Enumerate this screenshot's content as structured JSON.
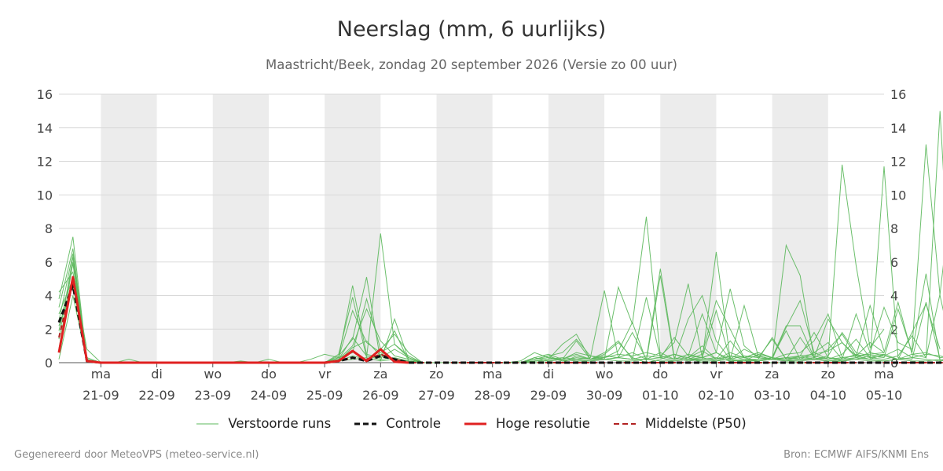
{
  "title": "Neerslag (mm, 6 uurlijks)",
  "subtitle": "Maastricht/Beek, zondag 20 september 2026 (Versie zo 00 uur)",
  "footer": {
    "left": "Gegenereerd door MeteoVPS (meteo-service.nl)",
    "right": "Bron: ECMWF AIFS/KNMI Ens"
  },
  "legend": [
    {
      "label": "Verstoorde runs",
      "color": "#5cb85c",
      "style": "thin"
    },
    {
      "label": "Controle",
      "color": "#111111",
      "style": "dashed"
    },
    {
      "label": "Hoge resolutie",
      "color": "#e02020",
      "style": "solid"
    },
    {
      "label": "Middelste (P50)",
      "color": "#b22222",
      "style": "dashed"
    }
  ],
  "chart_data": {
    "type": "line",
    "ylim": [
      0,
      16
    ],
    "yticks": [
      0,
      2,
      4,
      6,
      8,
      10,
      12,
      14,
      16
    ],
    "x_range_days": [
      -0.75,
      14.0
    ],
    "x_tick_labels": [
      {
        "day": "ma",
        "date": "21-09"
      },
      {
        "day": "di",
        "date": "22-09"
      },
      {
        "day": "wo",
        "date": "23-09"
      },
      {
        "day": "do",
        "date": "24-09"
      },
      {
        "day": "vr",
        "date": "25-09"
      },
      {
        "day": "za",
        "date": "26-09"
      },
      {
        "day": "zo",
        "date": "27-09"
      },
      {
        "day": "ma",
        "date": "28-09"
      },
      {
        "day": "di",
        "date": "29-09"
      },
      {
        "day": "wo",
        "date": "30-09"
      },
      {
        "day": "do",
        "date": "01-10"
      },
      {
        "day": "vr",
        "date": "02-10"
      },
      {
        "day": "za",
        "date": "03-10"
      },
      {
        "day": "zo",
        "date": "04-10"
      },
      {
        "day": "ma",
        "date": "05-10"
      }
    ],
    "shaded_days": [
      0,
      2,
      4,
      6,
      8,
      10,
      12
    ],
    "grid": true,
    "legend_position": "bottom",
    "perturbed_runs": [
      [
        4.2,
        5.4,
        0.8,
        0,
        0,
        0,
        0,
        0,
        0,
        0,
        0,
        0,
        0,
        0,
        0,
        0,
        0,
        0,
        0,
        0,
        0.3,
        4.6,
        0.5,
        0.3,
        0.8,
        0.3,
        0,
        0,
        0,
        0,
        0,
        0,
        0,
        0,
        0,
        0,
        0,
        0.4,
        0.2,
        0.5,
        1.2,
        0.3,
        0,
        0.2,
        0.5,
        0.3,
        0,
        0,
        0,
        0,
        0,
        0,
        0,
        0,
        0,
        0,
        0.1,
        0.2,
        0.4,
        0.5,
        0.2,
        1.8,
        3.5,
        0.8
      ],
      [
        3.8,
        7.5,
        0.1,
        0,
        0,
        0.2,
        0,
        0,
        0,
        0,
        0,
        0,
        0,
        0.1,
        0,
        0.2,
        0,
        0,
        0.2,
        0.5,
        0.3,
        3.1,
        1.2,
        0.6,
        1.1,
        0.3,
        0,
        0,
        0,
        0,
        0,
        0,
        0,
        0.1,
        0.6,
        0.3,
        0.1,
        0.2,
        0.3,
        4.3,
        0.3,
        0.6,
        0.2,
        5.6,
        0.3,
        0.1,
        0.2,
        6.6,
        0.2,
        0.1,
        0.5,
        0.3,
        0.1,
        0.4,
        1.8,
        0.3,
        0.1,
        0.3,
        0.2,
        11.7,
        0.3,
        0.2,
        3.6,
        0.2
      ],
      [
        2.5,
        6.5,
        0.1,
        0,
        0,
        0,
        0,
        0,
        0,
        0,
        0,
        0,
        0,
        0,
        0,
        0,
        0,
        0,
        0,
        0,
        0.5,
        3.9,
        0.3,
        7.7,
        1.1,
        0.4,
        0,
        0,
        0,
        0,
        0,
        0,
        0,
        0,
        0.3,
        0.5,
        0.2,
        1.3,
        0.2,
        0.2,
        4.5,
        2.3,
        8.7,
        0.4,
        1.2,
        4.7,
        0.3,
        3.1,
        0.2,
        3.4,
        0.4,
        0.2,
        2.1,
        3.7,
        0.6,
        1.2,
        0.2,
        2.9,
        0.6,
        3.3,
        1.2,
        0.8,
        13.0,
        4.0,
        0.2
      ],
      [
        2.9,
        5.0,
        0.3,
        0,
        0,
        0,
        0,
        0,
        0,
        0,
        0,
        0,
        0,
        0,
        0,
        0,
        0,
        0,
        0,
        0,
        0.4,
        1.4,
        5.1,
        0.1,
        2.6,
        0.2,
        0,
        0,
        0,
        0,
        0,
        0,
        0,
        0,
        0.2,
        0.4,
        0.6,
        1.4,
        0.4,
        0.3,
        0.7,
        2.4,
        0.1,
        5.2,
        0.2,
        2.6,
        4.0,
        1.3,
        0.2,
        0.8,
        0.4,
        0.2,
        0.5,
        0.6,
        1.3,
        2.9,
        0.3,
        0.4,
        0.5,
        0.6,
        3.6,
        0.5,
        0.3,
        15.0,
        0.2,
        1.2
      ],
      [
        3.3,
        6.8,
        0.2,
        0,
        0,
        0,
        0,
        0,
        0,
        0,
        0,
        0,
        0,
        0,
        0,
        0,
        0,
        0,
        0,
        0,
        0.2,
        1.0,
        3.2,
        1.3,
        0.4,
        0.2,
        0,
        0,
        0,
        0,
        0,
        0,
        0,
        0,
        0.1,
        0.2,
        1.1,
        1.7,
        0.2,
        0.6,
        1.3,
        0.2,
        3.9,
        0.3,
        1.5,
        0.4,
        2.9,
        0.6,
        0.1,
        0.2,
        0.1,
        0.3,
        1.9,
        0.2,
        0.2,
        0.4,
        1.8,
        0.6,
        0.4,
        0.3,
        3.2,
        0.6,
        5.3,
        0.1,
        0.3
      ],
      [
        2.2,
        4.6,
        0.2,
        0,
        0,
        0,
        0,
        0,
        0,
        0,
        0,
        0,
        0,
        0,
        0,
        0,
        0,
        0,
        0,
        0,
        0.3,
        0.6,
        3.8,
        0.8,
        1.7,
        0.6,
        0,
        0,
        0,
        0,
        0,
        0,
        0,
        0,
        0.2,
        0.4,
        0.1,
        0.3,
        0.2,
        0.4,
        0.3,
        1.8,
        0.2,
        0.6,
        0.2,
        0.5,
        0.3,
        0.1,
        0.4,
        0.2,
        0.2,
        1.5,
        0.2,
        0.3,
        0.4,
        0.2,
        0.5,
        1.4,
        0.3,
        0.2,
        0.4,
        1.6,
        0.3,
        4.1,
        11.3,
        0.2
      ],
      [
        1.9,
        5.9,
        0.1,
        0,
        0,
        0,
        0,
        0,
        0,
        0,
        0,
        0,
        0,
        0,
        0,
        0,
        0,
        0,
        0,
        0,
        0.1,
        0.9,
        1.3,
        0.4,
        1.9,
        0.1,
        0,
        0,
        0,
        0,
        0,
        0,
        0,
        0,
        0.3,
        0.1,
        0.2,
        0.5,
        0.2,
        0.3,
        0.5,
        0.4,
        0.6,
        0.4,
        0.2,
        0.3,
        0.7,
        0.2,
        0.4,
        0.3,
        0.6,
        0.3,
        0.2,
        0.4,
        0.5,
        0.7,
        1.2,
        0.3,
        0.6,
        0.4,
        0.8,
        0.3,
        0.5,
        0.4,
        0.2,
        0.8,
        7.9
      ],
      [
        1.4,
        6.3,
        0.1,
        0,
        0,
        0,
        0,
        0,
        0,
        0,
        0,
        0,
        0,
        0,
        0,
        0,
        0,
        0,
        0,
        0,
        0.2,
        1.5,
        0.4,
        0.2,
        0.3,
        0.1,
        0,
        0,
        0,
        0,
        0,
        0,
        0,
        0,
        0.2,
        0.3,
        0.2,
        0.6,
        0.4,
        0.2,
        0.3,
        0.2,
        0.4,
        0.3,
        0.5,
        0.2,
        0.3,
        0.6,
        0.2,
        0.4,
        0.3,
        0.2,
        0.3,
        0.4,
        0.2,
        0.3,
        0.2,
        0.5,
        0.3,
        0.4,
        0.2,
        0.5,
        0.6,
        0.3,
        0.4,
        0.2
      ],
      [
        0.8,
        6.0,
        0.1,
        0,
        0,
        0,
        0,
        0,
        0,
        0,
        0,
        0,
        0,
        0,
        0,
        0,
        0,
        0,
        0,
        0,
        0.1,
        0.4,
        0.2,
        0.5,
        0.2,
        0.1,
        0,
        0,
        0,
        0,
        0,
        0,
        0,
        0,
        0.1,
        0.2,
        0.3,
        0.2,
        0.1,
        0.2,
        0.3,
        0.2,
        0.2,
        0.3,
        0.1,
        0.2,
        0.2,
        0.3,
        0.1,
        0.1,
        0.2,
        0.3,
        0.1,
        0.2,
        0.3,
        0.1,
        0.2,
        0.3,
        0.2,
        0.1,
        0.2,
        0.3,
        0.2,
        0.1,
        0.2,
        0.3
      ],
      [
        0.2,
        4.0,
        0.1,
        0,
        0,
        0,
        0,
        0,
        0,
        0,
        0,
        0,
        0,
        0,
        0,
        0,
        0,
        0,
        0,
        0,
        0.1,
        0.2,
        0.3,
        0.1,
        0.2,
        0.1,
        0,
        0,
        0,
        0,
        0,
        0,
        0,
        0,
        0.1,
        0.1,
        0.2,
        0.1,
        0.1,
        0.2,
        0.1,
        0.1,
        0.2,
        0.1,
        0.1,
        0.2,
        0.1,
        0.1,
        0.2,
        0.1,
        0.1,
        0.2,
        0.1,
        0.1,
        0.2,
        0.1,
        0.1,
        0.2,
        0.1,
        0.1,
        0.2,
        0.1,
        0.1,
        0.2,
        0.1,
        0.1
      ]
    ],
    "perturbed_runs_tail": [
      [
        0.3,
        1.0,
        0.2,
        0.6,
        0.3,
        0.1,
        0.2,
        7.0,
        5.2,
        0.2,
        0.3,
        11.8,
        5.8,
        0.9,
        2.0
      ],
      [
        0.2,
        0.5,
        3.7,
        2.0,
        0.3,
        0.6,
        0.3,
        2.2,
        2.2,
        0.3,
        2.6,
        1.2,
        0.4,
        1.2,
        0.6
      ],
      [
        0.4,
        0.3,
        0.6,
        4.4,
        1.0,
        0.3,
        1.4,
        0.2,
        1.5,
        0.3,
        0.8,
        1.7,
        0.4,
        3.4,
        0.7
      ],
      [
        0.2,
        0.2,
        0.2,
        1.3,
        0.3,
        0.4,
        0.2,
        0.3,
        0.2,
        0.6,
        0.2,
        0.3,
        0.4,
        0.2,
        0.5
      ]
    ],
    "control": [
      2.4,
      4.6,
      0.1,
      0,
      0,
      0,
      0,
      0,
      0,
      0,
      0,
      0,
      0,
      0,
      0,
      0,
      0,
      0,
      0,
      0,
      0.1,
      0.3,
      0.1,
      0.4,
      0.2,
      0,
      0,
      0,
      0,
      0,
      0,
      0,
      0,
      0,
      0,
      0,
      0,
      0,
      0,
      0,
      0,
      0,
      0,
      0,
      0,
      0,
      0,
      0,
      0,
      0,
      0,
      0,
      0,
      0,
      0,
      0,
      0,
      0,
      0,
      0,
      0,
      0,
      0,
      0,
      0,
      0,
      0
    ],
    "high_res": [
      0.6,
      5.1,
      0.1,
      0,
      0,
      0,
      0,
      0,
      0,
      0,
      0,
      0,
      0,
      0,
      0,
      0,
      0,
      0,
      0,
      0,
      0.1,
      0.7,
      0.1,
      0.8,
      0.05,
      0
    ],
    "median": [
      1.5,
      5.0,
      0.1,
      0,
      0,
      0,
      0,
      0,
      0,
      0,
      0,
      0,
      0,
      0,
      0,
      0,
      0,
      0,
      0,
      0,
      0.1,
      0.3,
      0.2,
      0.5,
      0.2,
      0,
      0,
      0,
      0,
      0,
      0,
      0,
      0,
      0,
      0,
      0,
      0,
      0,
      0,
      0,
      0,
      0,
      0,
      0,
      0,
      0,
      0,
      0,
      0,
      0,
      0,
      0,
      0,
      0,
      0,
      0,
      0,
      0,
      0,
      0,
      0,
      0,
      0,
      0,
      0,
      0,
      0
    ]
  }
}
